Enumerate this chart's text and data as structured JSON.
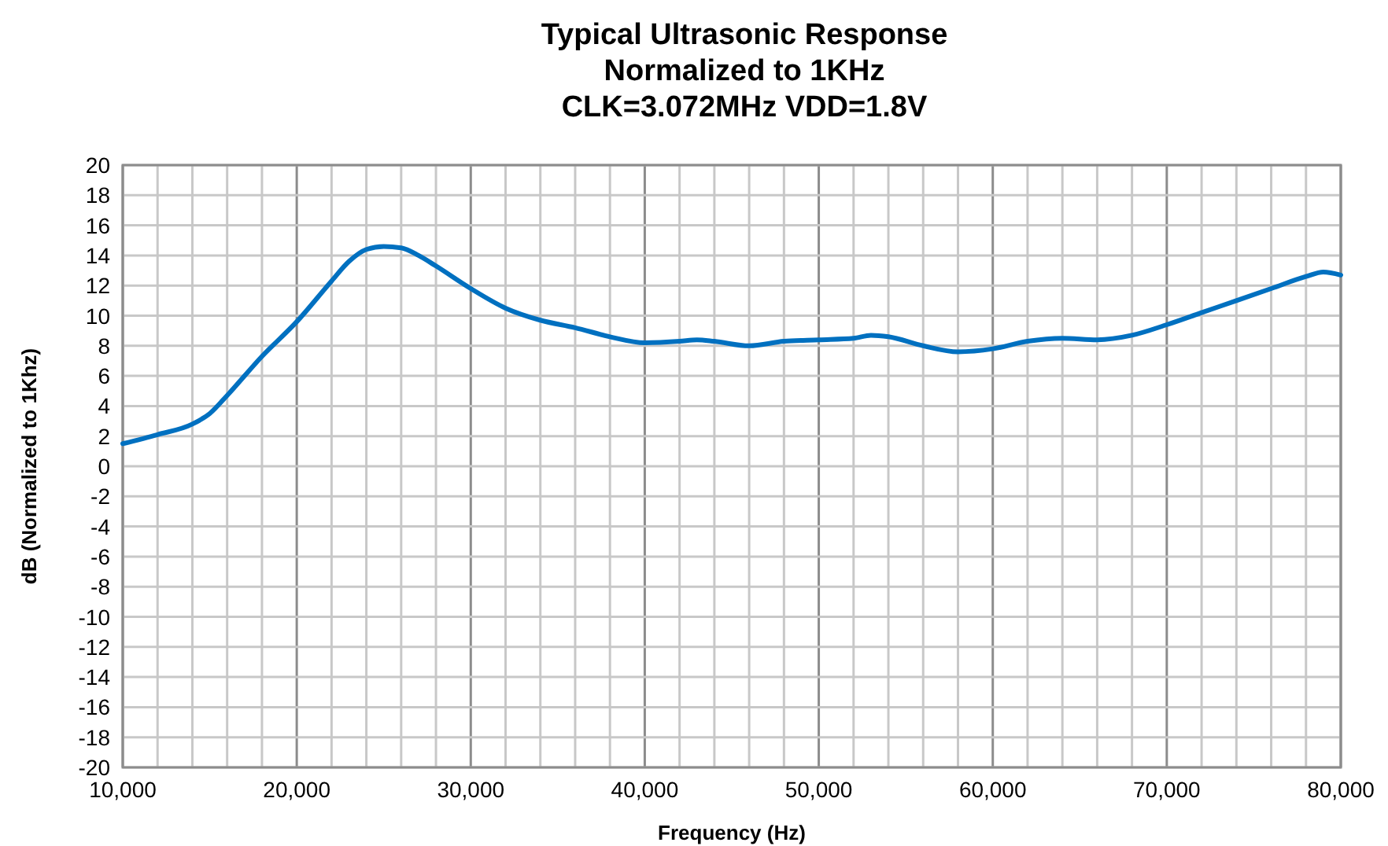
{
  "chart_data": {
    "type": "line",
    "title": "Typical Ultrasonic Response\nNormalized to 1KHz\nCLK=3.072MHz VDD=1.8V",
    "xlabel": "Frequency (Hz)",
    "ylabel": "dB (Normalized to 1Khz)",
    "x": [
      10000,
      12000,
      14000,
      15000,
      16000,
      18000,
      20000,
      22000,
      23000,
      24000,
      25000,
      26000,
      27000,
      28000,
      30000,
      32000,
      34000,
      36000,
      38000,
      40000,
      42000,
      43000,
      44000,
      46000,
      48000,
      50000,
      52000,
      53000,
      54000,
      56000,
      58000,
      60000,
      62000,
      64000,
      66000,
      68000,
      70000,
      72000,
      74000,
      76000,
      78000,
      79000,
      80000
    ],
    "series": [
      {
        "color": "#0070c0",
        "values": [
          1.5,
          2.1,
          2.8,
          3.5,
          4.7,
          7.3,
          9.6,
          12.3,
          13.6,
          14.4,
          14.6,
          14.5,
          14.0,
          13.3,
          11.8,
          10.5,
          9.7,
          9.2,
          8.6,
          8.2,
          8.3,
          8.4,
          8.3,
          8.0,
          8.3,
          8.4,
          8.5,
          8.7,
          8.6,
          8.0,
          7.6,
          7.8,
          8.3,
          8.5,
          8.4,
          8.7,
          9.4,
          10.2,
          11.0,
          11.8,
          12.6,
          12.9,
          12.7
        ]
      }
    ],
    "xlim": [
      10000,
      80000
    ],
    "xticks": [
      {
        "value": 10000,
        "label": "10,000"
      },
      {
        "value": 12000,
        "label": null
      },
      {
        "value": 14000,
        "label": null
      },
      {
        "value": 16000,
        "label": null
      },
      {
        "value": 18000,
        "label": null
      },
      {
        "value": 20000,
        "label": "20,000"
      },
      {
        "value": 22000,
        "label": null
      },
      {
        "value": 24000,
        "label": null
      },
      {
        "value": 26000,
        "label": null
      },
      {
        "value": 28000,
        "label": null
      },
      {
        "value": 30000,
        "label": "30,000"
      },
      {
        "value": 32000,
        "label": null
      },
      {
        "value": 34000,
        "label": null
      },
      {
        "value": 36000,
        "label": null
      },
      {
        "value": 38000,
        "label": null
      },
      {
        "value": 40000,
        "label": "40,000"
      },
      {
        "value": 42000,
        "label": null
      },
      {
        "value": 44000,
        "label": null
      },
      {
        "value": 46000,
        "label": null
      },
      {
        "value": 48000,
        "label": null
      },
      {
        "value": 50000,
        "label": "50,000"
      },
      {
        "value": 52000,
        "label": null
      },
      {
        "value": 54000,
        "label": null
      },
      {
        "value": 56000,
        "label": null
      },
      {
        "value": 58000,
        "label": null
      },
      {
        "value": 60000,
        "label": "60,000"
      },
      {
        "value": 62000,
        "label": null
      },
      {
        "value": 64000,
        "label": null
      },
      {
        "value": 66000,
        "label": null
      },
      {
        "value": 68000,
        "label": null
      },
      {
        "value": 70000,
        "label": "70,000"
      },
      {
        "value": 72000,
        "label": null
      },
      {
        "value": 74000,
        "label": null
      },
      {
        "value": 76000,
        "label": null
      },
      {
        "value": 78000,
        "label": null
      },
      {
        "value": 80000,
        "label": "80,000"
      }
    ],
    "ylim": [
      -20,
      20
    ],
    "yticks": [
      -20,
      -18,
      -16,
      -14,
      -12,
      -10,
      -8,
      -6,
      -4,
      -2,
      0,
      2,
      4,
      6,
      8,
      10,
      12,
      14,
      16,
      18,
      20
    ],
    "grid": true,
    "marker": "none",
    "line_style": "solid"
  }
}
